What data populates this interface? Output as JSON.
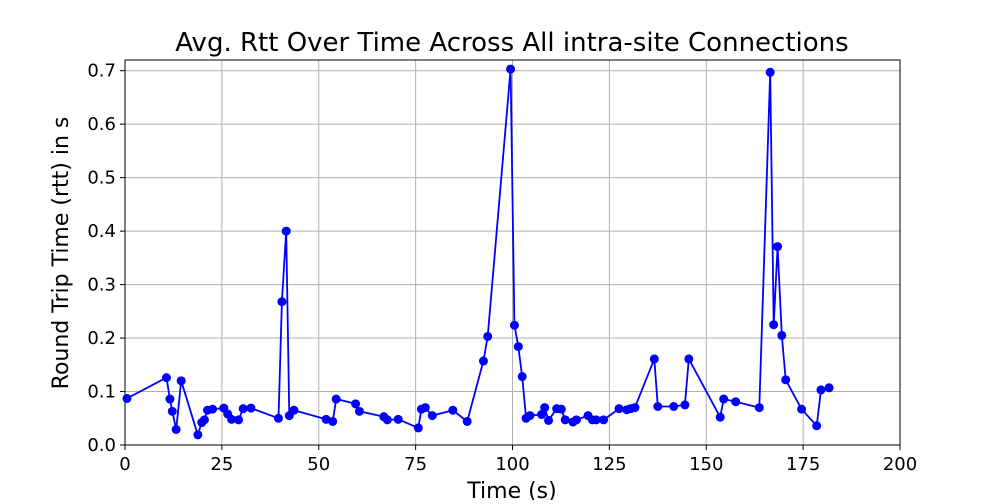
{
  "chart_data": {
    "type": "line",
    "title": "Avg. Rtt Over Time Across All intra-site Connections",
    "xlabel": "Time (s)",
    "ylabel": "Round Trip Time (rtt) in s",
    "xlim": [
      0,
      200
    ],
    "ylim": [
      0,
      0.72
    ],
    "xticks": [
      0,
      25,
      50,
      75,
      100,
      125,
      150,
      175,
      200
    ],
    "xtick_labels": [
      "0",
      "25",
      "50",
      "75",
      "100",
      "125",
      "150",
      "175",
      "200"
    ],
    "yticks": [
      0.0,
      0.1,
      0.2,
      0.3,
      0.4,
      0.5,
      0.6,
      0.7
    ],
    "ytick_labels": [
      "0.0",
      "0.1",
      "0.2",
      "0.3",
      "0.4",
      "0.5",
      "0.6",
      "0.7"
    ],
    "grid": true,
    "color": "#0000ff",
    "marker": "circle",
    "series": [
      {
        "x": [
          0.5,
          10.7,
          11.6,
          12.2,
          13.2,
          14.5,
          18.8,
          19.8,
          20.5,
          21.3,
          22.6,
          25.5,
          26.5,
          27.5,
          29.3,
          30.5,
          32.5,
          39.6,
          40.5,
          41.6,
          42.4,
          43.6,
          51.9,
          53.6,
          54.5,
          59.5,
          60.5,
          66.8,
          67.7,
          70.5,
          75.7,
          76.5,
          77.5,
          79.3,
          84.6,
          88.3,
          92.5,
          93.6,
          99.5,
          100.5,
          101.5,
          102.5,
          103.5,
          104.5,
          107.5,
          108.3,
          109.3,
          111.4,
          112.6,
          113.6,
          115.6,
          116.5,
          119.5,
          120.6,
          121.6,
          123.5,
          127.5,
          129.5,
          130.5,
          131.6,
          136.6,
          137.5,
          141.6,
          144.5,
          145.5,
          153.6,
          154.5,
          157.6,
          163.7,
          166.5,
          167.4,
          168.4,
          169.5,
          170.5,
          174.6,
          178.5,
          179.6,
          181.7
        ],
        "y": [
          0.087,
          0.126,
          0.086,
          0.063,
          0.029,
          0.12,
          0.019,
          0.042,
          0.047,
          0.065,
          0.067,
          0.069,
          0.058,
          0.048,
          0.047,
          0.068,
          0.069,
          0.05,
          0.268,
          0.4,
          0.055,
          0.065,
          0.048,
          0.044,
          0.086,
          0.077,
          0.063,
          0.053,
          0.047,
          0.048,
          0.032,
          0.067,
          0.07,
          0.055,
          0.065,
          0.044,
          0.157,
          0.203,
          0.703,
          0.224,
          0.184,
          0.128,
          0.05,
          0.055,
          0.057,
          0.07,
          0.046,
          0.068,
          0.067,
          0.047,
          0.043,
          0.047,
          0.055,
          0.047,
          0.047,
          0.047,
          0.068,
          0.066,
          0.068,
          0.07,
          0.161,
          0.072,
          0.072,
          0.075,
          0.161,
          0.052,
          0.086,
          0.081,
          0.07,
          0.697,
          0.225,
          0.371,
          0.205,
          0.122,
          0.067,
          0.036,
          0.103,
          0.107
        ]
      }
    ]
  }
}
